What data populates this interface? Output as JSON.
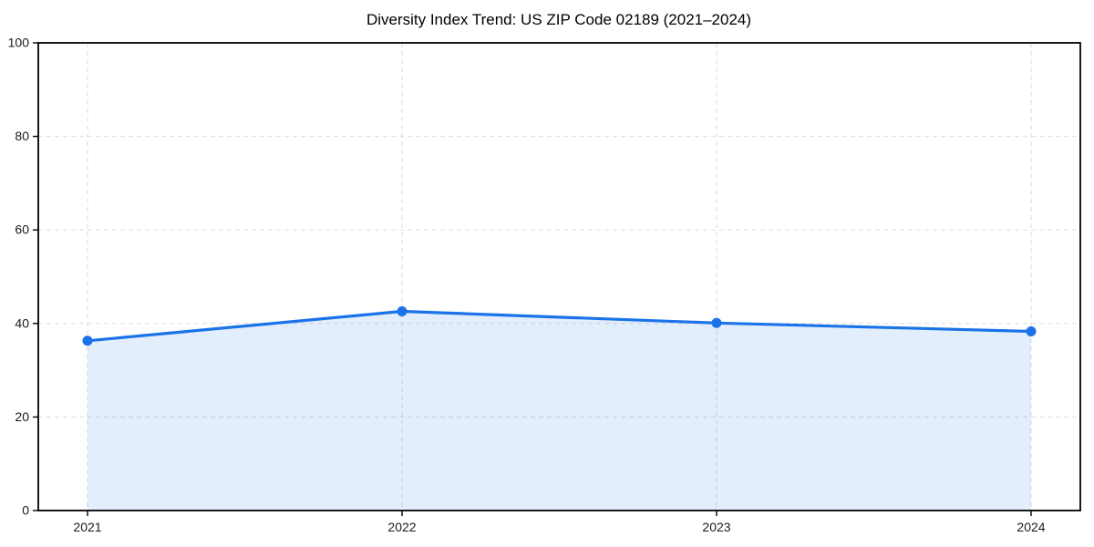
{
  "figure": {
    "title": "Diversity Index Trend: US ZIP Code 02189 (2021–2024)"
  },
  "chart_data": {
    "type": "area",
    "title": "Diversity Index Trend: US ZIP Code 02189 (2021–2024)",
    "categories": [
      "2021",
      "2022",
      "2023",
      "2024"
    ],
    "series": [
      {
        "name": "Diversity Index",
        "values": [
          36.3,
          42.6,
          40.1,
          38.3
        ]
      }
    ],
    "xlabel": "",
    "ylabel": "",
    "ylim": [
      0,
      100
    ],
    "yticks": [
      0,
      20,
      40,
      60,
      80,
      100
    ],
    "grid": "dashed-both-axes",
    "legend": "none",
    "fill_to_baseline": 0,
    "colors": {
      "line": "#1a73e8",
      "marker": "#1a73e8",
      "fill": "#1a73e8",
      "fill_opacity": 0.12,
      "grid": "#dbdbdb",
      "spine": "#000000",
      "tick_label": "#1a1a1a",
      "title": "#000000",
      "background": "#ffffff"
    }
  }
}
